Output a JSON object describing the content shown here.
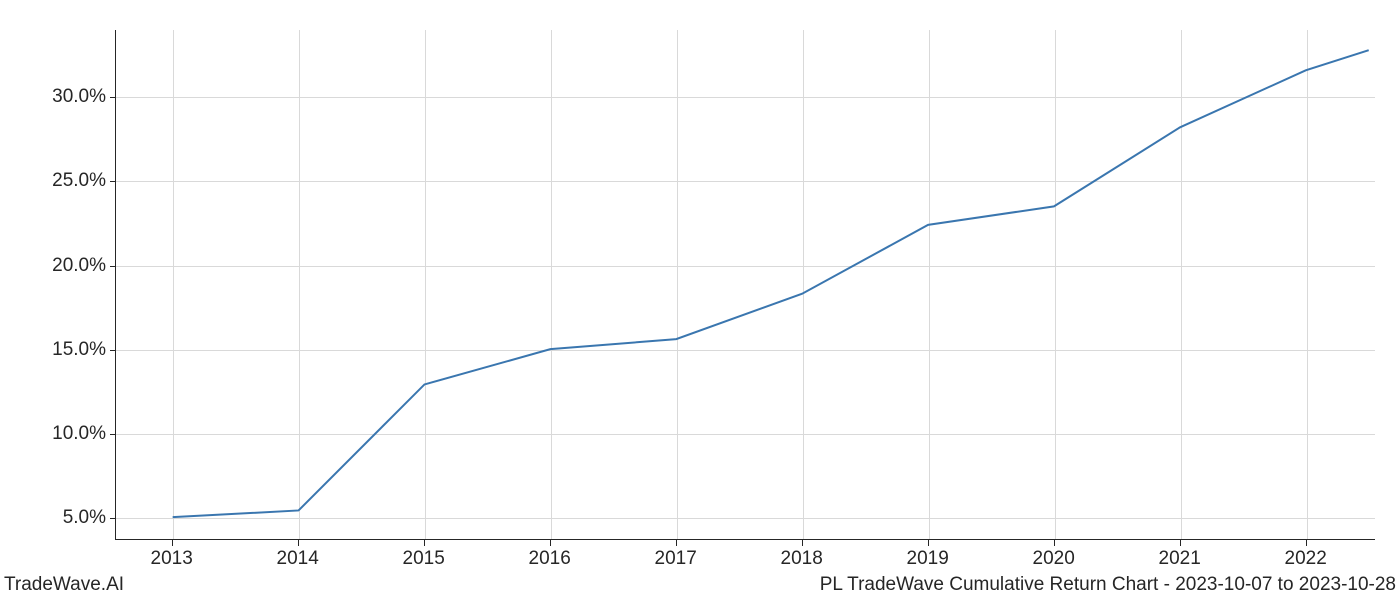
{
  "chart": {
    "type": "line",
    "x_values": [
      2013,
      2014,
      2015,
      2016,
      2017,
      2018,
      2019,
      2020,
      2021,
      2022,
      2022.5
    ],
    "y_values": [
      5.0,
      5.4,
      12.9,
      15.0,
      15.6,
      18.3,
      22.4,
      23.5,
      28.2,
      31.6,
      32.8
    ],
    "x_ticks": [
      2013,
      2014,
      2015,
      2016,
      2017,
      2018,
      2019,
      2020,
      2021,
      2022
    ],
    "x_tick_labels": [
      "2013",
      "2014",
      "2015",
      "2016",
      "2017",
      "2018",
      "2019",
      "2020",
      "2021",
      "2022"
    ],
    "y_ticks": [
      5.0,
      10.0,
      15.0,
      20.0,
      25.0,
      30.0
    ],
    "y_tick_labels": [
      "5.0%",
      "10.0%",
      "15.0%",
      "20.0%",
      "25.0%",
      "30.0%"
    ],
    "xlim": [
      2012.55,
      2022.55
    ],
    "ylim": [
      3.7,
      34.0
    ],
    "line_color": "#3a76af",
    "line_width": 2,
    "grid_color": "#d9d9d9",
    "axis_color": "#262626",
    "background_color": "#ffffff",
    "tick_fontsize": 19,
    "footer_fontsize": 19,
    "text_color": "#262626"
  },
  "footer": {
    "left": "TradeWave.AI",
    "right": "PL TradeWave Cumulative Return Chart - 2023-10-07 to 2023-10-28"
  }
}
